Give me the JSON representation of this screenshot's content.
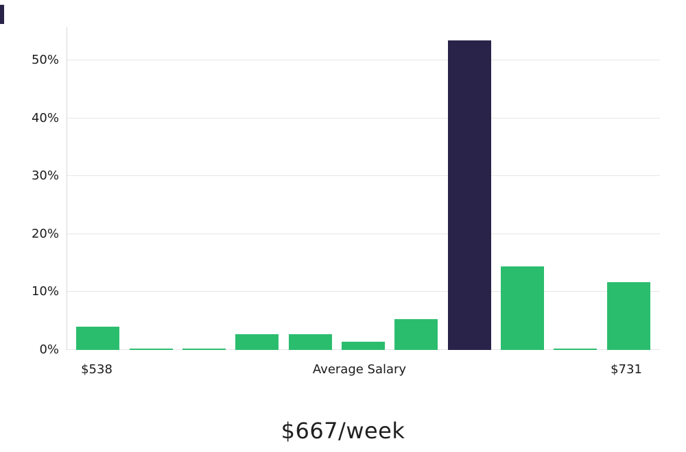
{
  "page": {
    "background": "#ffffff"
  },
  "chart_data": {
    "type": "bar",
    "title": "$667/week",
    "unit": "%",
    "values": [
      4.0,
      0.2,
      0.2,
      2.7,
      2.7,
      1.4,
      5.3,
      53.5,
      14.4,
      0.2,
      11.7
    ],
    "bar_color": "#2bbd6e",
    "highlight_index": 7,
    "highlight_color": "#2a2349",
    "ylim": [
      0,
      55.7
    ],
    "y_ticks": [
      {
        "label": "0%",
        "value": 0
      },
      {
        "label": "10%",
        "value": 10
      },
      {
        "label": "20%",
        "value": 20
      },
      {
        "label": "30%",
        "value": 30
      },
      {
        "label": "40%",
        "value": 40
      },
      {
        "label": "50%",
        "value": 50
      }
    ],
    "x_labels": {
      "left": "$538",
      "center": "Average Salary",
      "right": "$731"
    },
    "grid": true,
    "legend": false
  }
}
